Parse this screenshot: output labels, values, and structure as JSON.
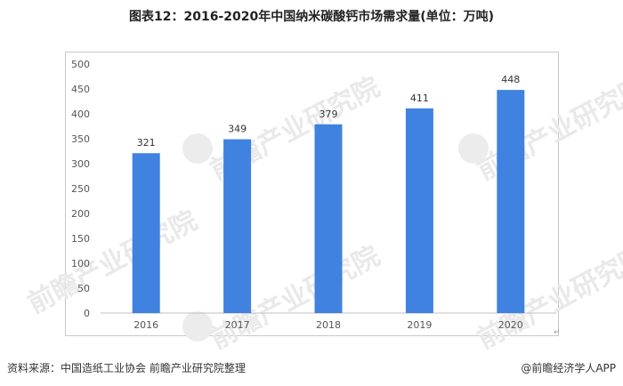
{
  "title": "图表12：2016-2020年中国纳米碳酸钙市场需求量(单位：万吨)",
  "watermark_text": "前瞻产业研究院",
  "footer": {
    "source": "资料来源：中国造纸工业协会 前瞻产业研究院整理",
    "brand": "@前瞻经济学人APP"
  },
  "colors": {
    "bar": "#3f82e0",
    "axis": "#bfbfbf",
    "tick_text": "#555555"
  },
  "chart_data": {
    "type": "bar",
    "categories": [
      "2016",
      "2017",
      "2018",
      "2019",
      "2020"
    ],
    "values": [
      321,
      349,
      379,
      411,
      448
    ],
    "ylim": [
      0,
      500
    ],
    "yticks": [
      0,
      50,
      100,
      150,
      200,
      250,
      300,
      350,
      400,
      450,
      500
    ],
    "grid": false
  }
}
